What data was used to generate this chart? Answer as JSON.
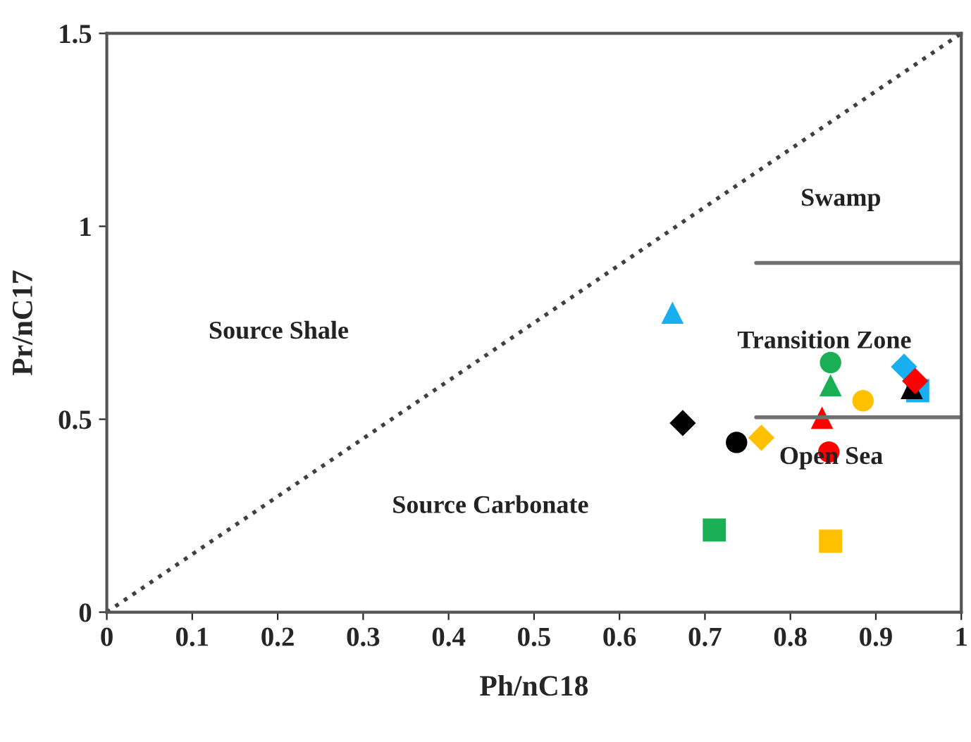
{
  "chart_data": {
    "type": "scatter",
    "xlabel": "Ph/nC18",
    "ylabel": "Pr/nC17",
    "xlim": [
      0,
      1
    ],
    "ylim": [
      0,
      1.5
    ],
    "xticks": [
      0,
      0.1,
      0.2,
      0.3,
      0.4,
      0.5,
      0.6,
      0.7,
      0.8,
      0.9,
      1
    ],
    "yticks": [
      0,
      0.5,
      1,
      1.5
    ],
    "grid": false,
    "series": [
      {
        "type": "line",
        "x": [
          0,
          1
        ],
        "values": [
          0,
          1.5
        ],
        "color": "#404040",
        "line_style": "dotted",
        "marker": "none"
      },
      {
        "type": "line",
        "x": [
          0.76,
          1
        ],
        "values": [
          0.905,
          0.905
        ],
        "color": "#707070",
        "line_style": "solid",
        "marker": "none"
      },
      {
        "type": "line",
        "x": [
          0.76,
          1
        ],
        "values": [
          0.505,
          0.505
        ],
        "color": "#707070",
        "line_style": "solid",
        "marker": "none"
      },
      {
        "x": [
          0.662
        ],
        "values": [
          0.776
        ],
        "color": "#19aef0",
        "marker": "triangle"
      },
      {
        "x": [
          0.674
        ],
        "values": [
          0.49
        ],
        "color": "#000000",
        "marker": "diamond"
      },
      {
        "x": [
          0.737
        ],
        "values": [
          0.44
        ],
        "color": "#000000",
        "marker": "circle"
      },
      {
        "x": [
          0.766
        ],
        "values": [
          0.452
        ],
        "color": "#ffc000",
        "marker": "diamond"
      },
      {
        "x": [
          0.711
        ],
        "values": [
          0.213
        ],
        "color": "#1aaf54",
        "marker": "square"
      },
      {
        "x": [
          0.847
        ],
        "values": [
          0.647
        ],
        "color": "#1aaf54",
        "marker": "circle"
      },
      {
        "x": [
          0.847
        ],
        "values": [
          0.588
        ],
        "color": "#1aaf54",
        "marker": "triangle"
      },
      {
        "x": [
          0.837
        ],
        "values": [
          0.504
        ],
        "color": "#ff0000",
        "marker": "triangle"
      },
      {
        "x": [
          0.845
        ],
        "values": [
          0.415
        ],
        "color": "#ff0000",
        "marker": "circle"
      },
      {
        "x": [
          0.885
        ],
        "values": [
          0.548
        ],
        "color": "#ffc000",
        "marker": "circle"
      },
      {
        "x": [
          0.847
        ],
        "values": [
          0.184
        ],
        "color": "#ffc000",
        "marker": "square"
      },
      {
        "x": [
          0.933
        ],
        "values": [
          0.636
        ],
        "color": "#19aef0",
        "marker": "diamond"
      },
      {
        "x": [
          0.949
        ],
        "values": [
          0.574
        ],
        "color": "#19aef0",
        "marker": "square"
      },
      {
        "x": [
          0.942
        ],
        "values": [
          0.581
        ],
        "color": "#000000",
        "marker": "triangle"
      },
      {
        "x": [
          0.946
        ],
        "values": [
          0.599
        ],
        "color": "#ff0000",
        "marker": "diamond"
      }
    ],
    "annotations": [
      "Swamp",
      "Source Shale",
      "Transition Zone",
      "Source Carbonate",
      "Open Sea"
    ]
  }
}
